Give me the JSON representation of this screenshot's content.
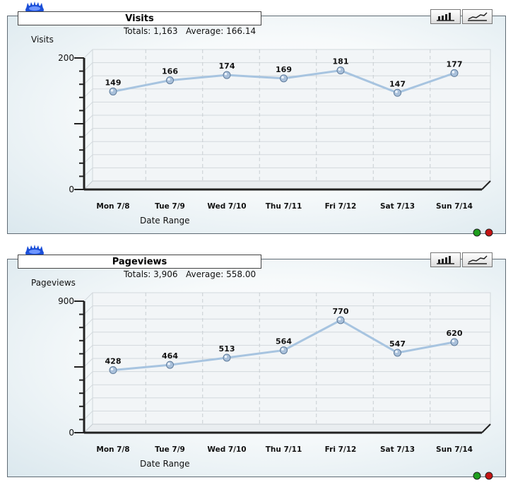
{
  "panels": [
    {
      "title": "Visits",
      "totals_label": "Totals:",
      "totals_value": "1,163",
      "average_label": "Average:",
      "average_value": "166.14",
      "ylabel": "Visits",
      "xlabel": "Date Range"
    },
    {
      "title": "Pageviews",
      "totals_label": "Totals:",
      "totals_value": "3,906",
      "average_label": "Average:",
      "average_value": "558.00",
      "ylabel": "Pageviews",
      "xlabel": "Date Range"
    }
  ],
  "icons": {
    "badge": "blue-gear-badge-icon",
    "bar_toggle": "bar-chart-icon",
    "line_toggle": "line-chart-icon",
    "status_ok": "green-dot-icon",
    "status_stop": "red-dot-icon"
  },
  "colors": {
    "line": "#a7c4e0",
    "marker": "#8aa6c4",
    "status_green": "#1e9e1e",
    "status_red": "#c41414"
  },
  "chart_data": [
    {
      "type": "line",
      "categories": [
        "Mon 7/8",
        "Tue 7/9",
        "Wed 7/10",
        "Thu 7/11",
        "Fri 7/12",
        "Sat 7/13",
        "Sun 7/14"
      ],
      "values": [
        149,
        166,
        174,
        169,
        181,
        147,
        177
      ],
      "ylim": [
        0,
        200
      ],
      "yticks": [
        "0",
        "200"
      ],
      "grid": true
    },
    {
      "type": "line",
      "categories": [
        "Mon 7/8",
        "Tue 7/9",
        "Wed 7/10",
        "Thu 7/11",
        "Fri 7/12",
        "Sat 7/13",
        "Sun 7/14"
      ],
      "values": [
        428,
        464,
        513,
        564,
        770,
        547,
        620
      ],
      "ylim": [
        0,
        900
      ],
      "yticks": [
        "0",
        "900"
      ],
      "grid": true
    }
  ]
}
